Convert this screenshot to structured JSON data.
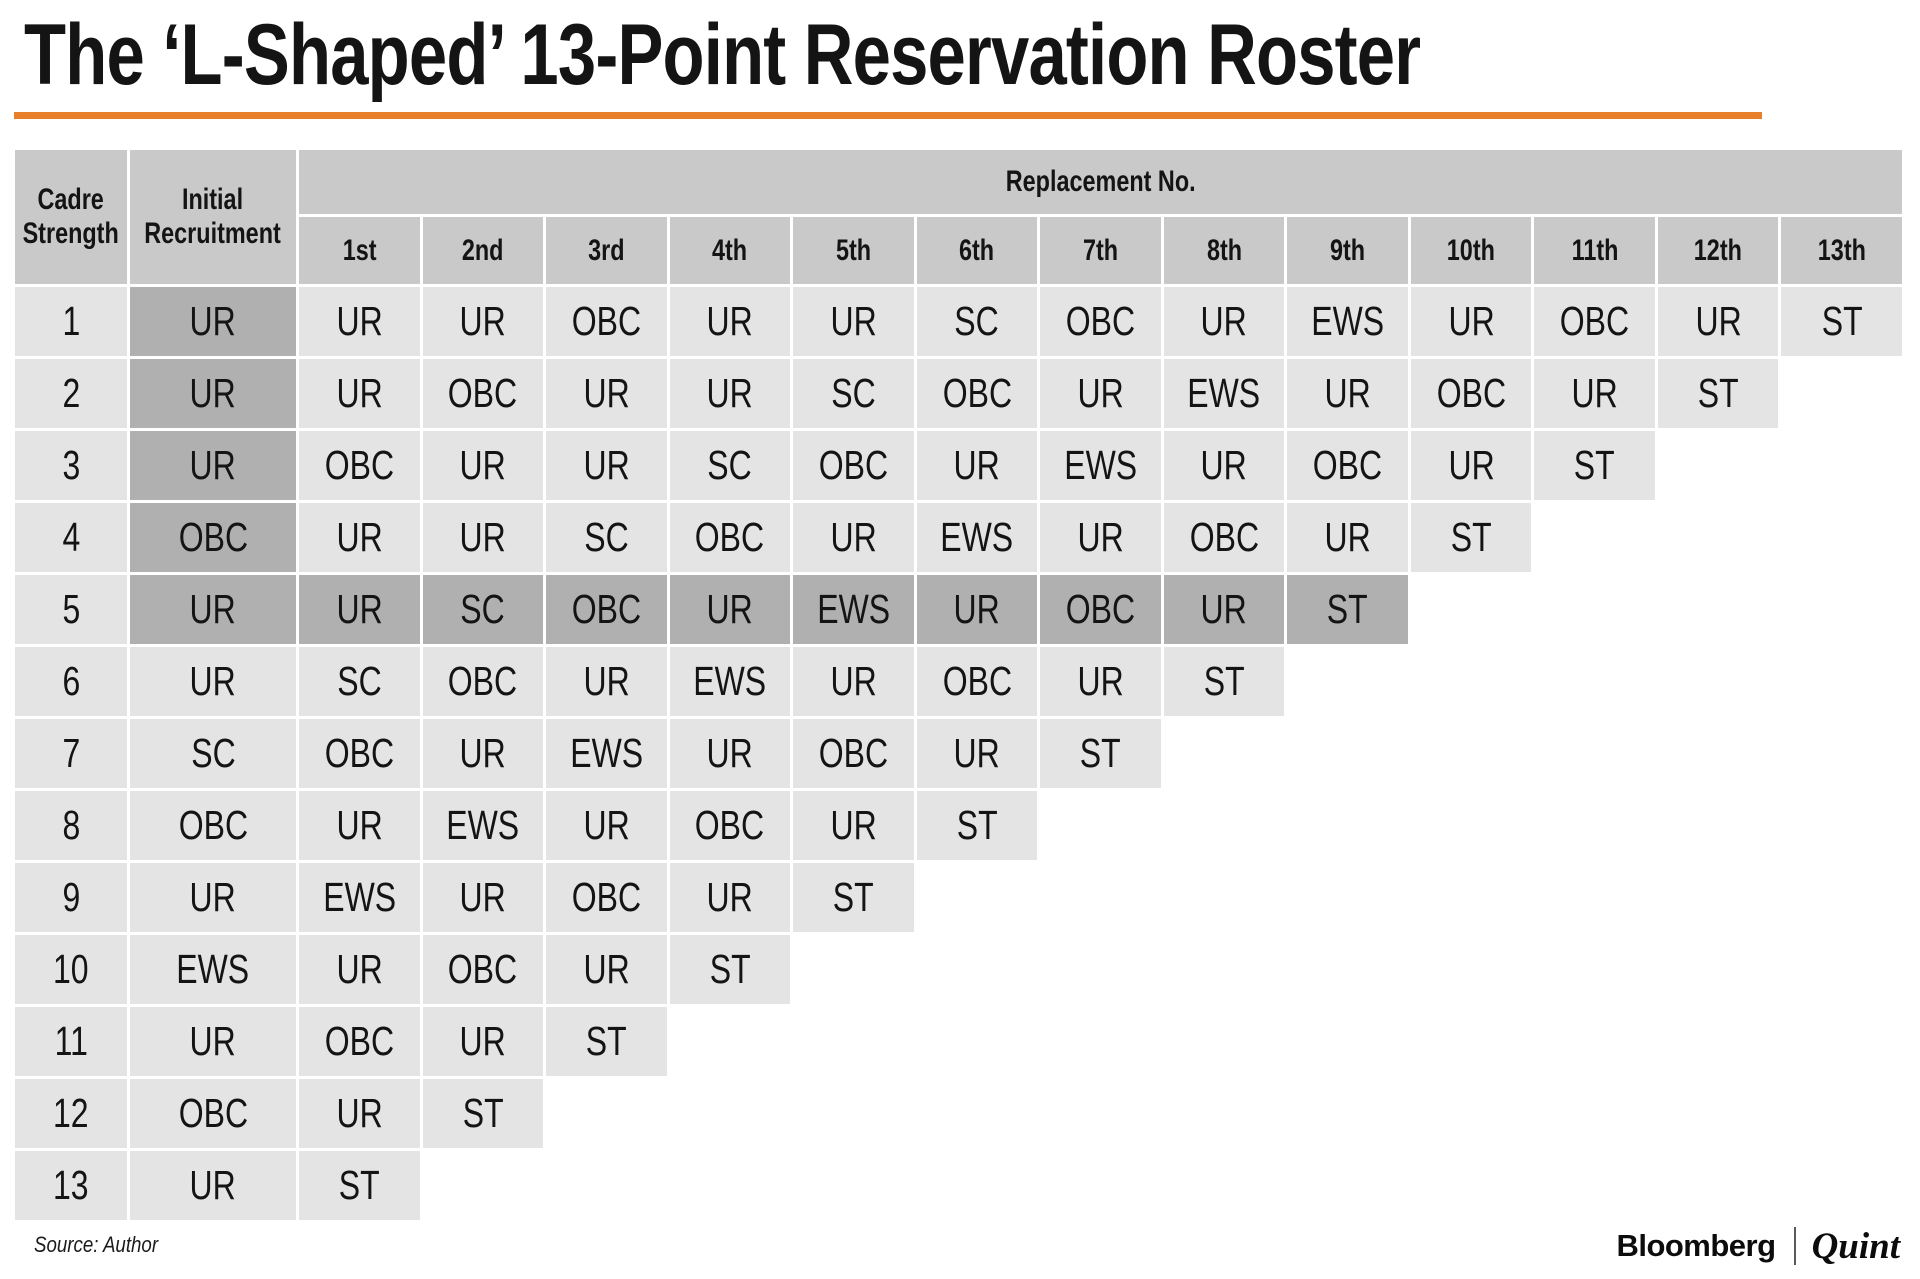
{
  "title": "The ‘L-Shaped’ 13-Point Reservation Roster",
  "source_note": "Source: Author",
  "branding": {
    "bloomberg": "Bloomberg",
    "quint": "Quint"
  },
  "colors": {
    "accent_orange": "#e87f2b",
    "header_gray": "#c9c9c9",
    "cell_light": "#e4e4e4",
    "cell_dark": "#b0b0b0"
  },
  "chart_data": {
    "type": "table",
    "title": "The ‘L-Shaped’ 13-Point Reservation Roster",
    "corner_headers": [
      "Cadre Strength",
      "Initial Recruitment"
    ],
    "column_group_label": "Replacement No.",
    "replacement_columns": [
      "1st",
      "2nd",
      "3rd",
      "4th",
      "5th",
      "6th",
      "7th",
      "8th",
      "9th",
      "10th",
      "11th",
      "12th",
      "13th"
    ],
    "rows": [
      {
        "cadre_strength": "1",
        "initial_recruitment": "UR",
        "replacements": [
          "UR",
          "UR",
          "OBC",
          "UR",
          "UR",
          "SC",
          "OBC",
          "UR",
          "EWS",
          "UR",
          "OBC",
          "UR",
          "ST"
        ]
      },
      {
        "cadre_strength": "2",
        "initial_recruitment": "UR",
        "replacements": [
          "UR",
          "OBC",
          "UR",
          "UR",
          "SC",
          "OBC",
          "UR",
          "EWS",
          "UR",
          "OBC",
          "UR",
          "ST"
        ]
      },
      {
        "cadre_strength": "3",
        "initial_recruitment": "UR",
        "replacements": [
          "OBC",
          "UR",
          "UR",
          "SC",
          "OBC",
          "UR",
          "EWS",
          "UR",
          "OBC",
          "UR",
          "ST"
        ]
      },
      {
        "cadre_strength": "4",
        "initial_recruitment": "OBC",
        "replacements": [
          "UR",
          "UR",
          "SC",
          "OBC",
          "UR",
          "EWS",
          "UR",
          "OBC",
          "UR",
          "ST"
        ]
      },
      {
        "cadre_strength": "5",
        "initial_recruitment": "UR",
        "replacements": [
          "UR",
          "SC",
          "OBC",
          "UR",
          "EWS",
          "UR",
          "OBC",
          "UR",
          "ST"
        ]
      },
      {
        "cadre_strength": "6",
        "initial_recruitment": "UR",
        "replacements": [
          "SC",
          "OBC",
          "UR",
          "EWS",
          "UR",
          "OBC",
          "UR",
          "ST"
        ]
      },
      {
        "cadre_strength": "7",
        "initial_recruitment": "SC",
        "replacements": [
          "OBC",
          "UR",
          "EWS",
          "UR",
          "OBC",
          "UR",
          "ST"
        ]
      },
      {
        "cadre_strength": "8",
        "initial_recruitment": "OBC",
        "replacements": [
          "UR",
          "EWS",
          "UR",
          "OBC",
          "UR",
          "ST"
        ]
      },
      {
        "cadre_strength": "9",
        "initial_recruitment": "UR",
        "replacements": [
          "EWS",
          "UR",
          "OBC",
          "UR",
          "ST"
        ]
      },
      {
        "cadre_strength": "10",
        "initial_recruitment": "EWS",
        "replacements": [
          "UR",
          "OBC",
          "UR",
          "ST"
        ]
      },
      {
        "cadre_strength": "11",
        "initial_recruitment": "UR",
        "replacements": [
          "OBC",
          "UR",
          "ST"
        ]
      },
      {
        "cadre_strength": "12",
        "initial_recruitment": "OBC",
        "replacements": [
          "UR",
          "ST"
        ]
      },
      {
        "cadre_strength": "13",
        "initial_recruitment": "UR",
        "replacements": [
          "ST"
        ]
      }
    ],
    "highlights": {
      "initial_recruitment_rows": [
        1,
        2,
        3,
        4,
        5
      ],
      "full_rows": [
        5
      ]
    },
    "legend": null,
    "grid": "white gaps between gray cells, stepped right edge (L-shape)"
  }
}
